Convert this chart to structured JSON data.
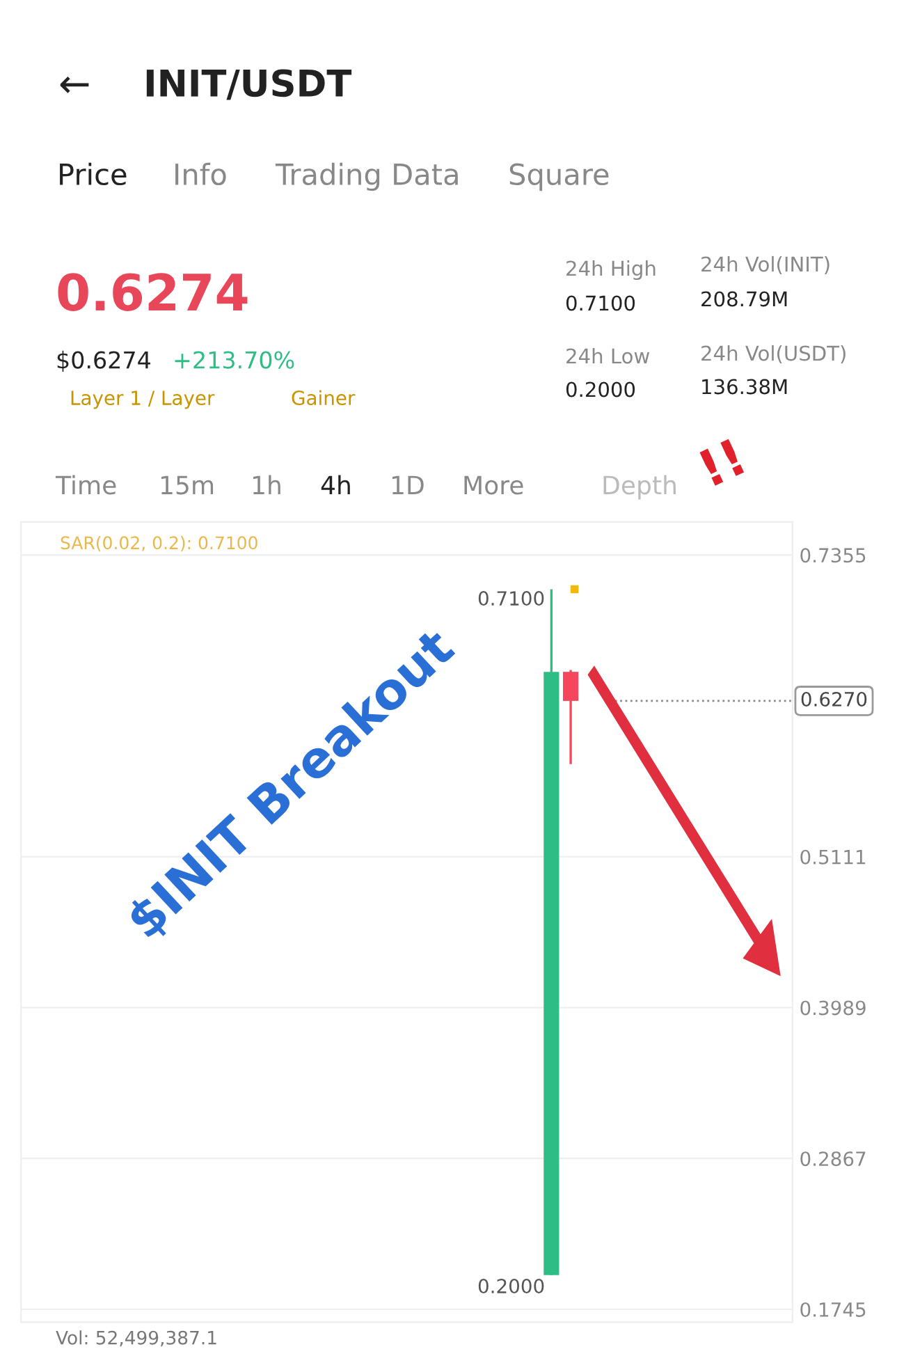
{
  "chart_data": {
    "type": "candlestick",
    "title": "INIT/USDT",
    "categories": [
      null,
      null,
      null,
      null,
      null,
      null,
      null,
      null,
      null,
      null,
      null,
      null,
      null,
      null,
      null,
      null,
      null,
      null,
      null,
      null,
      null,
      null,
      null,
      null,
      null,
      null,
      null,
      null,
      null,
      null,
      null,
      null,
      null,
      null,
      null,
      null,
      null,
      null,
      null,
      null
    ],
    "ohlc": [
      null,
      null,
      null,
      null,
      null,
      null,
      null,
      null,
      null,
      null,
      null,
      null,
      null,
      null,
      null,
      null,
      null,
      null,
      null,
      null,
      null,
      null,
      null,
      null,
      null,
      null,
      null,
      [
        0.2,
        0.71,
        0.2,
        0.6486
      ],
      [
        0.6486,
        0.65,
        0.58,
        0.627
      ],
      null,
      null,
      null,
      null,
      null,
      null,
      null,
      null,
      null,
      null,
      null
    ],
    "colors": [
      null,
      null,
      null,
      null,
      null,
      null,
      null,
      null,
      null,
      null,
      null,
      null,
      null,
      null,
      null,
      null,
      null,
      null,
      null,
      null,
      null,
      null,
      null,
      null,
      null,
      null,
      null,
      "#2ebd85",
      "#f6465d",
      null,
      null,
      null,
      null,
      null,
      null,
      null,
      null,
      null,
      null,
      null
    ],
    "series": [
      {
        "type": "scatter",
        "color": "#f0b90b",
        "values": [
          null,
          null,
          null,
          null,
          null,
          null,
          null,
          null,
          null,
          null,
          null,
          null,
          null,
          null,
          null,
          null,
          null,
          null,
          null,
          null,
          null,
          null,
          null,
          null,
          null,
          null,
          null,
          null,
          0.71,
          null,
          null,
          null,
          null,
          null,
          null,
          null,
          null,
          null,
          null,
          null
        ]
      }
    ],
    "ylim": [
      0.165,
      0.76
    ],
    "yticks": [
      0.1745,
      0.2867,
      0.3989,
      0.5111,
      0.7355
    ],
    "grid": "y",
    "tick_labels": "y",
    "ref_lines": [
      {
        "axis": "y",
        "value": 0.627,
        "label": "0.6270",
        "color": "#888888",
        "line_style": "dotted"
      }
    ],
    "annotations": [
      "0.7100",
      "0.2000",
      "SAR(0.02, 0.2): 0.7100",
      "$INIT Breakout",
      "!!",
      "Vol: 52,499,387.1",
      "Price",
      "Info",
      "Trading Data",
      "Square",
      "0.6274",
      "$0.6274",
      "+213.70%",
      "Layer 1 / Layer",
      "Gainer",
      "24h High",
      "0.7100",
      "24h Low",
      "0.2000",
      "24h Vol(INIT)",
      "208.79M",
      "24h Vol(USDT)",
      "136.38M",
      "Time",
      "15m",
      "1h",
      "4h",
      "1D",
      "More",
      "Depth",
      "←"
    ]
  }
}
